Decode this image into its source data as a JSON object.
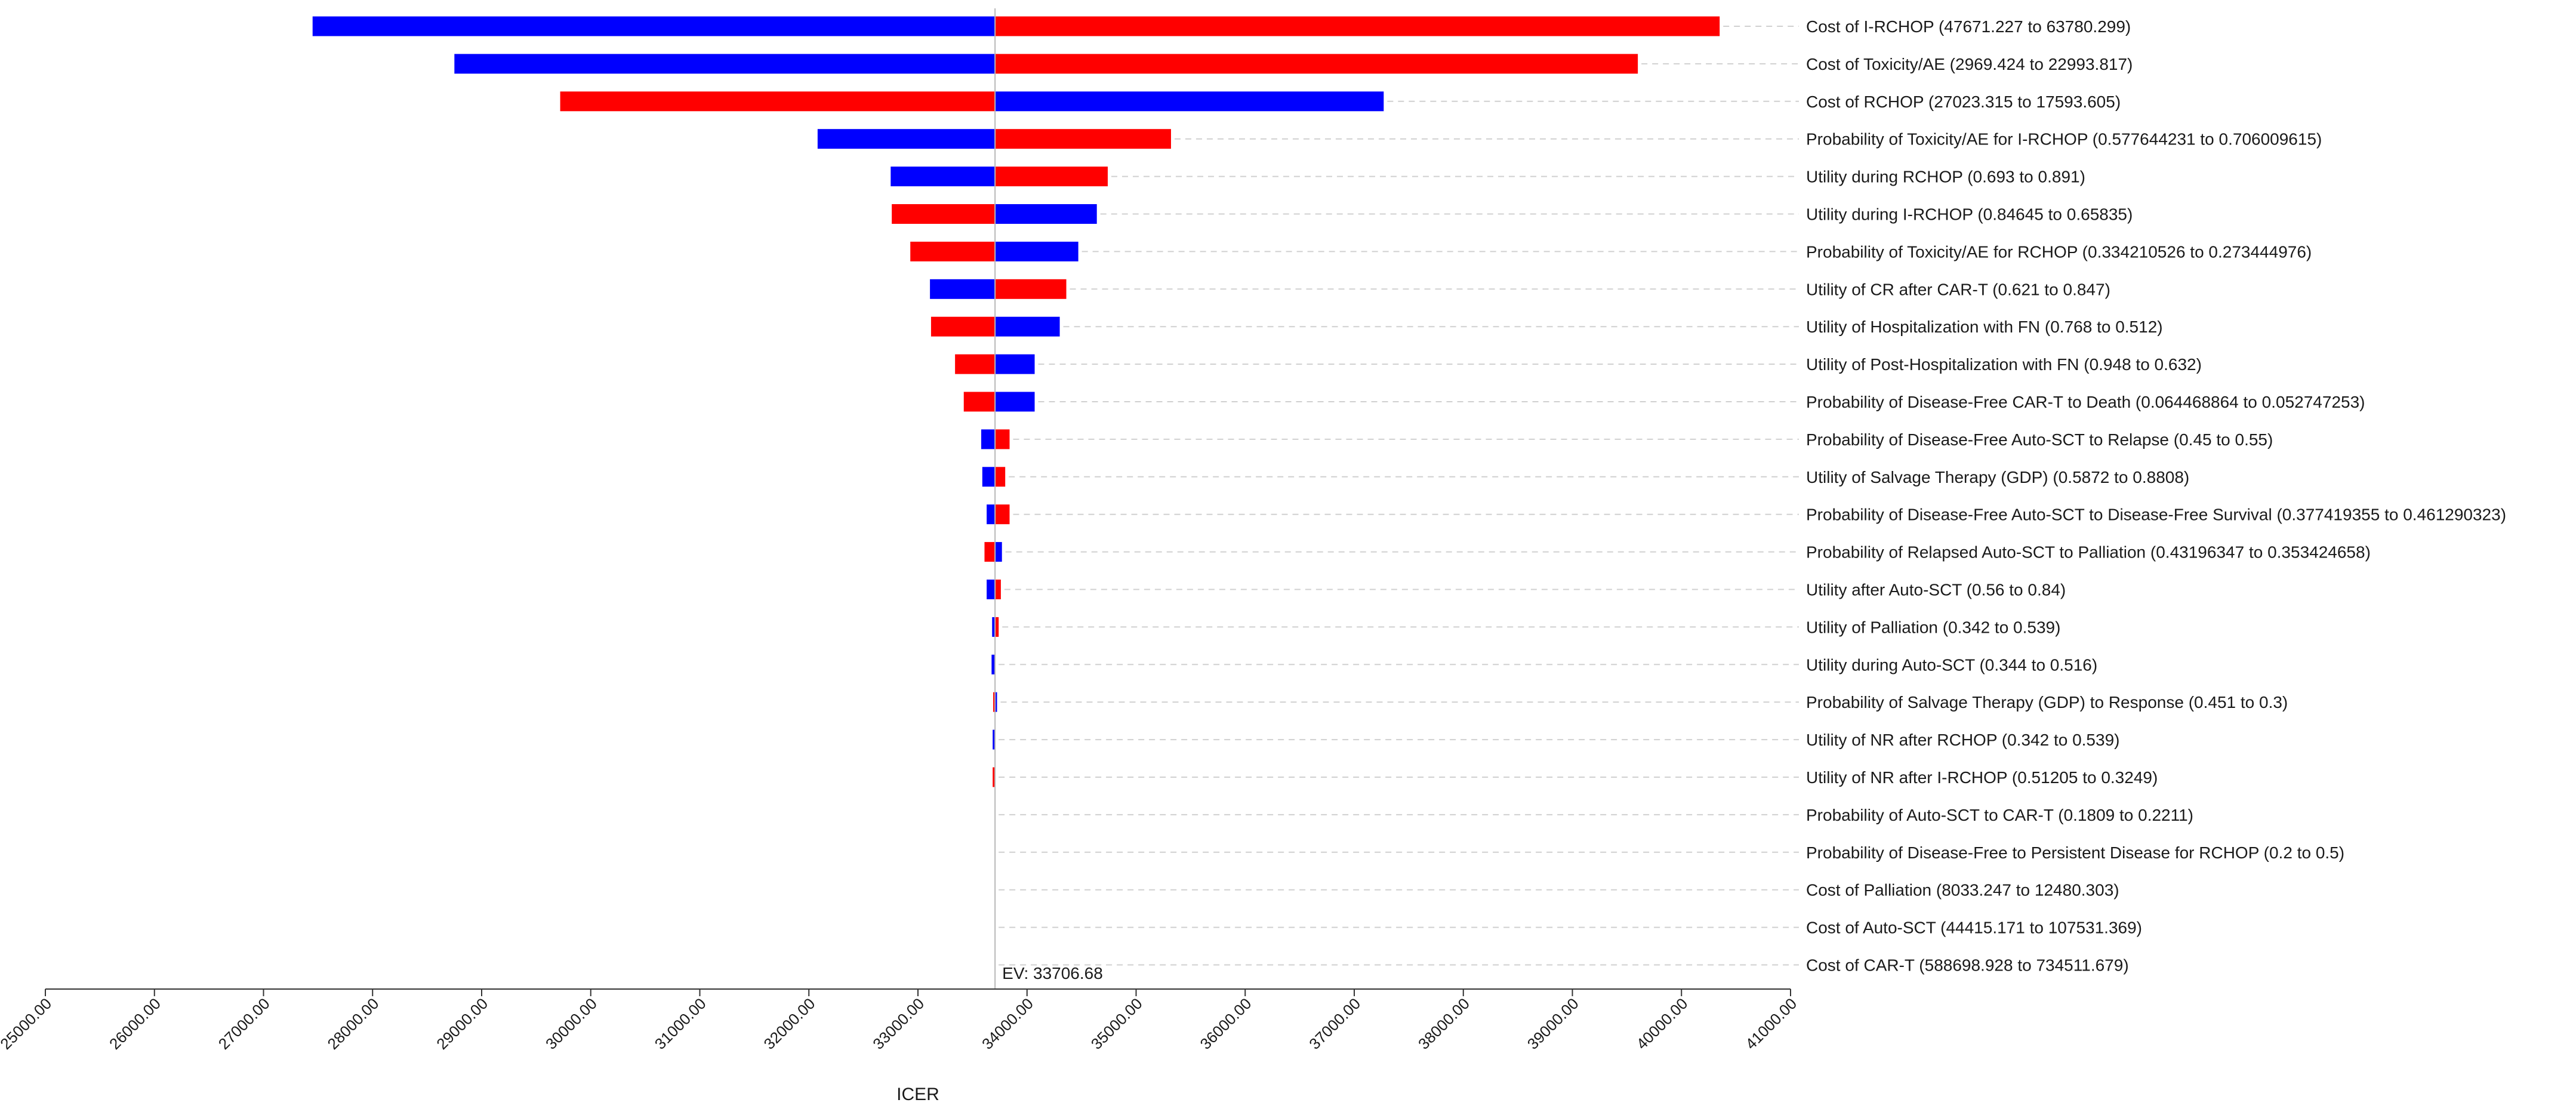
{
  "chart_data": {
    "type": "tornado",
    "xlabel": "ICER",
    "xlim": [
      25000,
      41000
    ],
    "xticks": [
      "25000.00",
      "26000.00",
      "27000.00",
      "28000.00",
      "29000.00",
      "30000.00",
      "31000.00",
      "32000.00",
      "33000.00",
      "34000.00",
      "35000.00",
      "36000.00",
      "37000.00",
      "38000.00",
      "39000.00",
      "40000.00",
      "41000.00"
    ],
    "ev": 33706.68,
    "ev_label": "EV: 33706.68",
    "colors": {
      "low": "#0000ff",
      "high": "#ff0000"
    },
    "bars": [
      {
        "label": "Cost of I-RCHOP (47671.227 to 63780.299)",
        "left": 27450,
        "left_color": "blue",
        "right": 40350,
        "right_color": "red"
      },
      {
        "label": "Cost of Toxicity/AE (2969.424 to 22993.817)",
        "left": 28750,
        "left_color": "blue",
        "right": 39600,
        "right_color": "red"
      },
      {
        "label": "Cost of RCHOP (27023.315 to 17593.605)",
        "left": 29720,
        "left_color": "red",
        "right": 37270,
        "right_color": "blue"
      },
      {
        "label": "Probability of Toxicity/AE for I-RCHOP (0.577644231 to 0.706009615)",
        "left": 32080,
        "left_color": "blue",
        "right": 35320,
        "right_color": "red"
      },
      {
        "label": "Utility during RCHOP (0.693 to 0.891)",
        "left": 32750,
        "left_color": "blue",
        "right": 34740,
        "right_color": "red"
      },
      {
        "label": "Utility during I-RCHOP (0.84645 to 0.65835)",
        "left": 32760,
        "left_color": "red",
        "right": 34640,
        "right_color": "blue"
      },
      {
        "label": "Probability of Toxicity/AE for RCHOP (0.334210526 to 0.273444976)",
        "left": 32930,
        "left_color": "red",
        "right": 34470,
        "right_color": "blue"
      },
      {
        "label": "Utility of CR after CAR-T (0.621 to 0.847)",
        "left": 33110,
        "left_color": "blue",
        "right": 34360,
        "right_color": "red"
      },
      {
        "label": "Utility of Hospitalization with FN (0.768 to 0.512)",
        "left": 33120,
        "left_color": "red",
        "right": 34300,
        "right_color": "blue"
      },
      {
        "label": "Utility of Post-Hospitalization with FN (0.948 to 0.632)",
        "left": 33340,
        "left_color": "red",
        "right": 34070,
        "right_color": "blue"
      },
      {
        "label": "Probability of Disease-Free CAR-T to Death (0.064468864 to 0.052747253)",
        "left": 33420,
        "left_color": "red",
        "right": 34070,
        "right_color": "blue"
      },
      {
        "label": "Probability of Disease-Free Auto-SCT to Relapse (0.45 to 0.55)",
        "left": 33580,
        "left_color": "blue",
        "right": 33840,
        "right_color": "red"
      },
      {
        "label": "Utility of Salvage Therapy (GDP) (0.5872 to 0.8808)",
        "left": 33590,
        "left_color": "blue",
        "right": 33800,
        "right_color": "red"
      },
      {
        "label": "Probability of Disease-Free Auto-SCT to Disease-Free Survival (0.377419355 to 0.461290323)",
        "left": 33630,
        "left_color": "blue",
        "right": 33840,
        "right_color": "red"
      },
      {
        "label": "Probability of Relapsed Auto-SCT to Palliation (0.43196347 to 0.353424658)",
        "left": 33610,
        "left_color": "red",
        "right": 33770,
        "right_color": "blue"
      },
      {
        "label": "Utility after Auto-SCT (0.56 to 0.84)",
        "left": 33630,
        "left_color": "blue",
        "right": 33760,
        "right_color": "red"
      },
      {
        "label": "Utility of Palliation (0.342 to 0.539)",
        "left": 33680,
        "left_color": "blue",
        "right": 33740,
        "right_color": "red"
      },
      {
        "label": "Utility during Auto-SCT (0.344 to 0.516)",
        "left": 33675,
        "left_color": "blue",
        "right": 33706.68,
        "right_color": "red"
      },
      {
        "label": "Probability of Salvage Therapy (GDP) to Response (0.451 to 0.3)",
        "left": 33690,
        "left_color": "red",
        "right": 33725,
        "right_color": "blue"
      },
      {
        "label": "Utility of NR after RCHOP (0.342 to 0.539)",
        "left": 33685,
        "left_color": "blue",
        "right": 33706.68,
        "right_color": "red"
      },
      {
        "label": "Utility of NR after I-RCHOP (0.51205 to 0.3249)",
        "left": 33685,
        "left_color": "red",
        "right": 33706.68,
        "right_color": "blue"
      },
      {
        "label": "Probability of Auto-SCT to CAR-T (0.1809 to 0.2211)",
        "left": 33706.68,
        "left_color": "blue",
        "right": 33706.68,
        "right_color": "red"
      },
      {
        "label": "Probability of Disease-Free to Persistent Disease for RCHOP (0.2 to 0.5)",
        "left": 33706.68,
        "left_color": "blue",
        "right": 33706.68,
        "right_color": "red"
      },
      {
        "label": "Cost of Palliation (8033.247 to 12480.303)",
        "left": 33706.68,
        "left_color": "blue",
        "right": 33706.68,
        "right_color": "red"
      },
      {
        "label": "Cost of Auto-SCT (44415.171 to 107531.369)",
        "left": 33706.68,
        "left_color": "blue",
        "right": 33706.68,
        "right_color": "red"
      },
      {
        "label": "Cost of CAR-T (588698.928 to 734511.679)",
        "left": 33706.68,
        "left_color": "blue",
        "right": 33706.68,
        "right_color": "red"
      }
    ]
  }
}
